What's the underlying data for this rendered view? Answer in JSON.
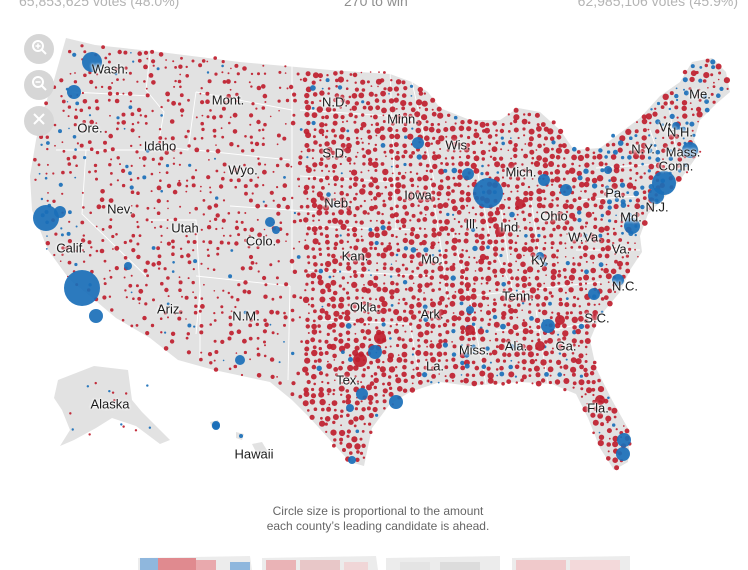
{
  "header": {
    "left_votes": "65,853,625 votes (48.0%)",
    "right_votes": "62,985,106 votes (45.9%)",
    "win_threshold": "270 to win"
  },
  "controls": {
    "zoom_in": "zoom-in-icon",
    "zoom_out": "zoom-out-icon",
    "reset": "close-icon"
  },
  "colors": {
    "dem": "#1a6fb8",
    "rep": "#bf1e2e",
    "land": "#e2e2e2",
    "land_border": "#ffffff"
  },
  "states": [
    {
      "key": "wa",
      "label": "Wash."
    },
    {
      "key": "or",
      "label": "Ore."
    },
    {
      "key": "ca",
      "label": "Calif."
    },
    {
      "key": "nv",
      "label": "Nev."
    },
    {
      "key": "id",
      "label": "Idaho"
    },
    {
      "key": "mt",
      "label": "Mont."
    },
    {
      "key": "wy",
      "label": "Wyo."
    },
    {
      "key": "ut",
      "label": "Utah"
    },
    {
      "key": "co",
      "label": "Colo."
    },
    {
      "key": "az",
      "label": "Ariz."
    },
    {
      "key": "nm",
      "label": "N.M."
    },
    {
      "key": "nd",
      "label": "N.D."
    },
    {
      "key": "sd",
      "label": "S.D."
    },
    {
      "key": "ne",
      "label": "Neb."
    },
    {
      "key": "ks",
      "label": "Kan."
    },
    {
      "key": "ok",
      "label": "Okla."
    },
    {
      "key": "tx",
      "label": "Tex."
    },
    {
      "key": "mn",
      "label": "Minn."
    },
    {
      "key": "ia",
      "label": "Iowa"
    },
    {
      "key": "mo",
      "label": "Mo."
    },
    {
      "key": "ar",
      "label": "Ark."
    },
    {
      "key": "la",
      "label": "La."
    },
    {
      "key": "wi",
      "label": "Wis."
    },
    {
      "key": "il",
      "label": "Ill."
    },
    {
      "key": "mi",
      "label": "Mich."
    },
    {
      "key": "in",
      "label": "Ind."
    },
    {
      "key": "oh",
      "label": "Ohio"
    },
    {
      "key": "ky",
      "label": "Ky."
    },
    {
      "key": "tn",
      "label": "Tenn."
    },
    {
      "key": "ms",
      "label": "Miss."
    },
    {
      "key": "al",
      "label": "Ala."
    },
    {
      "key": "ga",
      "label": "Ga."
    },
    {
      "key": "fl",
      "label": "Fla."
    },
    {
      "key": "sc",
      "label": "S.C."
    },
    {
      "key": "nc",
      "label": "N.C."
    },
    {
      "key": "va",
      "label": "Va."
    },
    {
      "key": "wv",
      "label": "W.Va."
    },
    {
      "key": "pa",
      "label": "Pa."
    },
    {
      "key": "ny",
      "label": "N.Y."
    },
    {
      "key": "nj",
      "label": "N.J."
    },
    {
      "key": "md",
      "label": "Md."
    },
    {
      "key": "vt",
      "label": "Vt."
    },
    {
      "key": "nh",
      "label": "N.H."
    },
    {
      "key": "ma",
      "label": "Mass."
    },
    {
      "key": "ct",
      "label": "Conn."
    },
    {
      "key": "me",
      "label": "Me."
    },
    {
      "key": "ak",
      "label": "Alaska"
    },
    {
      "key": "hi",
      "label": "Hawaii"
    }
  ],
  "caption": {
    "line1": "Circle size is proportional to the amount",
    "line2": "each county’s leading candidate is ahead."
  }
}
